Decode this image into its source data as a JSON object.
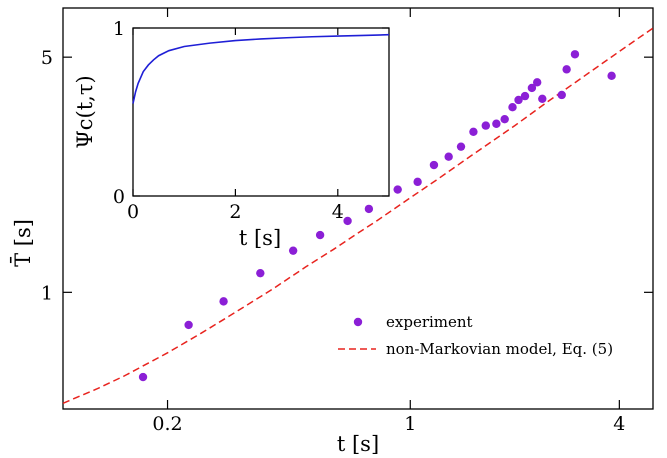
{
  "chart_data": [
    {
      "type": "scatter",
      "scale": {
        "x": "log",
        "y": "log"
      },
      "xlabel": "t [s]",
      "ylabel": "T̄ [s]",
      "xlim": [
        0.1,
        5
      ],
      "ylim": [
        0.45,
        7
      ],
      "xticks": [
        0.2,
        1,
        4
      ],
      "xtick_labels": [
        "0.2",
        "1",
        "4"
      ],
      "yticks": [
        1,
        5
      ],
      "ytick_labels": [
        "1",
        "5"
      ],
      "grid": false,
      "legend": {
        "placement": "bottom-right"
      },
      "series": [
        {
          "name": "experiment",
          "type": "scatter",
          "color": "#8B1FD6",
          "x": [
            0.17,
            0.23,
            0.29,
            0.37,
            0.46,
            0.55,
            0.66,
            0.76,
            0.92,
            1.05,
            1.17,
            1.29,
            1.4,
            1.52,
            1.65,
            1.77,
            1.87,
            1.97,
            2.05,
            2.14,
            2.24,
            2.32,
            2.4,
            2.73,
            2.82,
            2.98,
            3.8
          ],
          "y": [
            0.56,
            0.8,
            0.94,
            1.14,
            1.33,
            1.48,
            1.63,
            1.77,
            2.02,
            2.13,
            2.39,
            2.53,
            2.71,
            3.0,
            3.13,
            3.17,
            3.27,
            3.55,
            3.73,
            3.83,
            4.05,
            4.21,
            3.76,
            3.86,
            4.6,
            5.1,
            4.4
          ]
        },
        {
          "name": "non-Markovian model, Eq. (5)",
          "type": "line",
          "style": "dashed",
          "color": "#E8231E",
          "x": [
            0.1,
            0.125,
            0.15,
            0.2,
            0.25,
            0.3,
            0.4,
            0.5,
            0.6,
            0.7,
            0.8,
            1.0,
            1.2,
            1.5,
            2.0,
            2.5,
            3.0,
            3.5,
            4.0,
            4.5,
            5.0
          ],
          "y": [
            0.468,
            0.516,
            0.564,
            0.661,
            0.756,
            0.848,
            1.02,
            1.19,
            1.34,
            1.49,
            1.63,
            1.91,
            2.17,
            2.55,
            3.13,
            3.7,
            4.22,
            4.72,
            5.2,
            5.66,
            6.1
          ]
        }
      ]
    },
    {
      "type": "line",
      "placement": "inset-top-left",
      "xlabel": "t [s]",
      "ylabel": "Ψc(t,τ)",
      "xlim": [
        0,
        5
      ],
      "ylim": [
        0,
        1
      ],
      "xticks": [
        0,
        2,
        4
      ],
      "xtick_labels": [
        "0",
        "2",
        "4"
      ],
      "yticks": [
        0,
        1
      ],
      "ytick_labels": [
        "0",
        "1"
      ],
      "grid": false,
      "series": [
        {
          "type": "line",
          "color": "#1F1FD6",
          "x": [
            0,
            0.05,
            0.1,
            0.2,
            0.3,
            0.4,
            0.5,
            0.7,
            1.0,
            1.5,
            2.0,
            2.5,
            3.0,
            3.5,
            4.0,
            4.5,
            5.0
          ],
          "y": [
            0.55,
            0.62,
            0.67,
            0.74,
            0.78,
            0.81,
            0.835,
            0.865,
            0.89,
            0.91,
            0.925,
            0.935,
            0.942,
            0.948,
            0.952,
            0.956,
            0.96
          ]
        }
      ]
    }
  ]
}
